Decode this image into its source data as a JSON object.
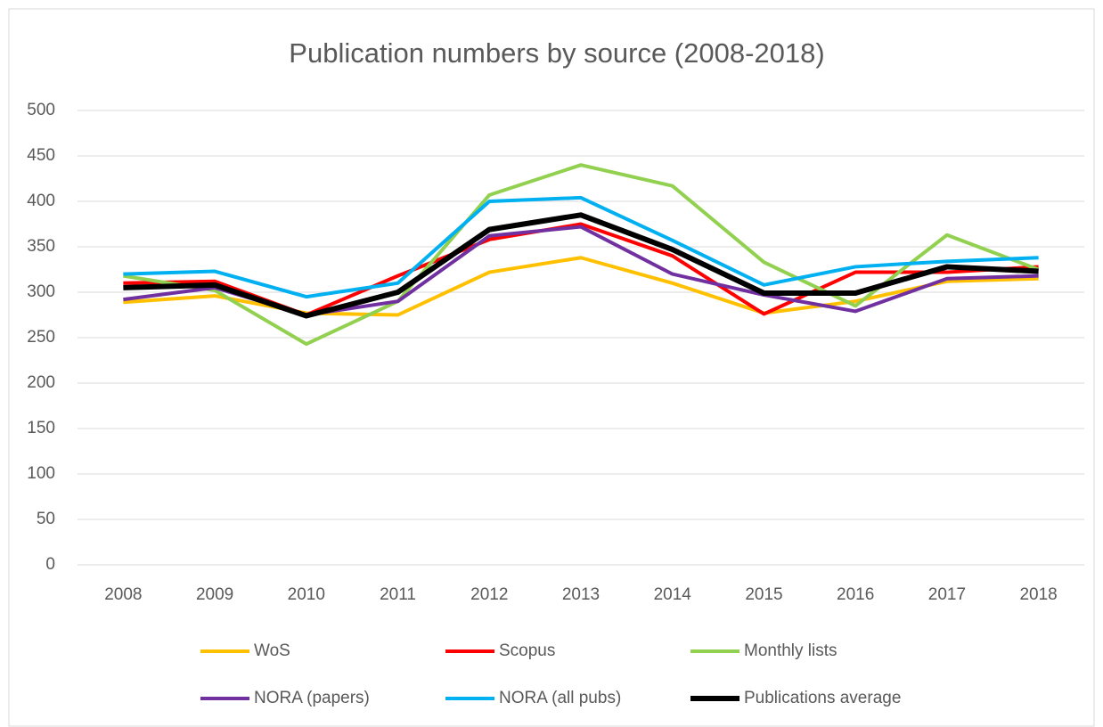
{
  "chart_data": {
    "type": "line",
    "title": "Publication numbers by source (2008-2018)",
    "categories": [
      "2008",
      "2009",
      "2010",
      "2011",
      "2012",
      "2013",
      "2014",
      "2015",
      "2016",
      "2017",
      "2018"
    ],
    "series": [
      {
        "name": "WoS",
        "color": "#ffc000",
        "values": [
          289,
          296,
          277,
          275,
          322,
          338,
          310,
          277,
          290,
          312,
          315
        ]
      },
      {
        "name": "Scopus",
        "color": "#ff0000",
        "values": [
          310,
          312,
          275,
          318,
          358,
          375,
          340,
          276,
          322,
          322,
          328
        ]
      },
      {
        "name": "Monthly lists",
        "color": "#92d050",
        "values": [
          318,
          302,
          243,
          290,
          407,
          440,
          417,
          333,
          285,
          363,
          325
        ]
      },
      {
        "name": "NORA (papers)",
        "color": "#7030a0",
        "values": [
          292,
          305,
          275,
          290,
          362,
          372,
          320,
          297,
          279,
          315,
          318
        ]
      },
      {
        "name": "NORA (all pubs)",
        "color": "#00b0f0",
        "values": [
          320,
          323,
          295,
          310,
          400,
          404,
          357,
          308,
          328,
          334,
          338
        ]
      },
      {
        "name": "Publications average",
        "color": "#000000",
        "values": [
          305,
          308,
          274,
          300,
          369,
          385,
          347,
          299,
          299,
          328,
          323
        ]
      }
    ],
    "ylim": [
      0,
      500
    ],
    "yticks": [
      0,
      50,
      100,
      150,
      200,
      250,
      300,
      350,
      400,
      450,
      500
    ],
    "grid": true,
    "legend": "bottom"
  }
}
